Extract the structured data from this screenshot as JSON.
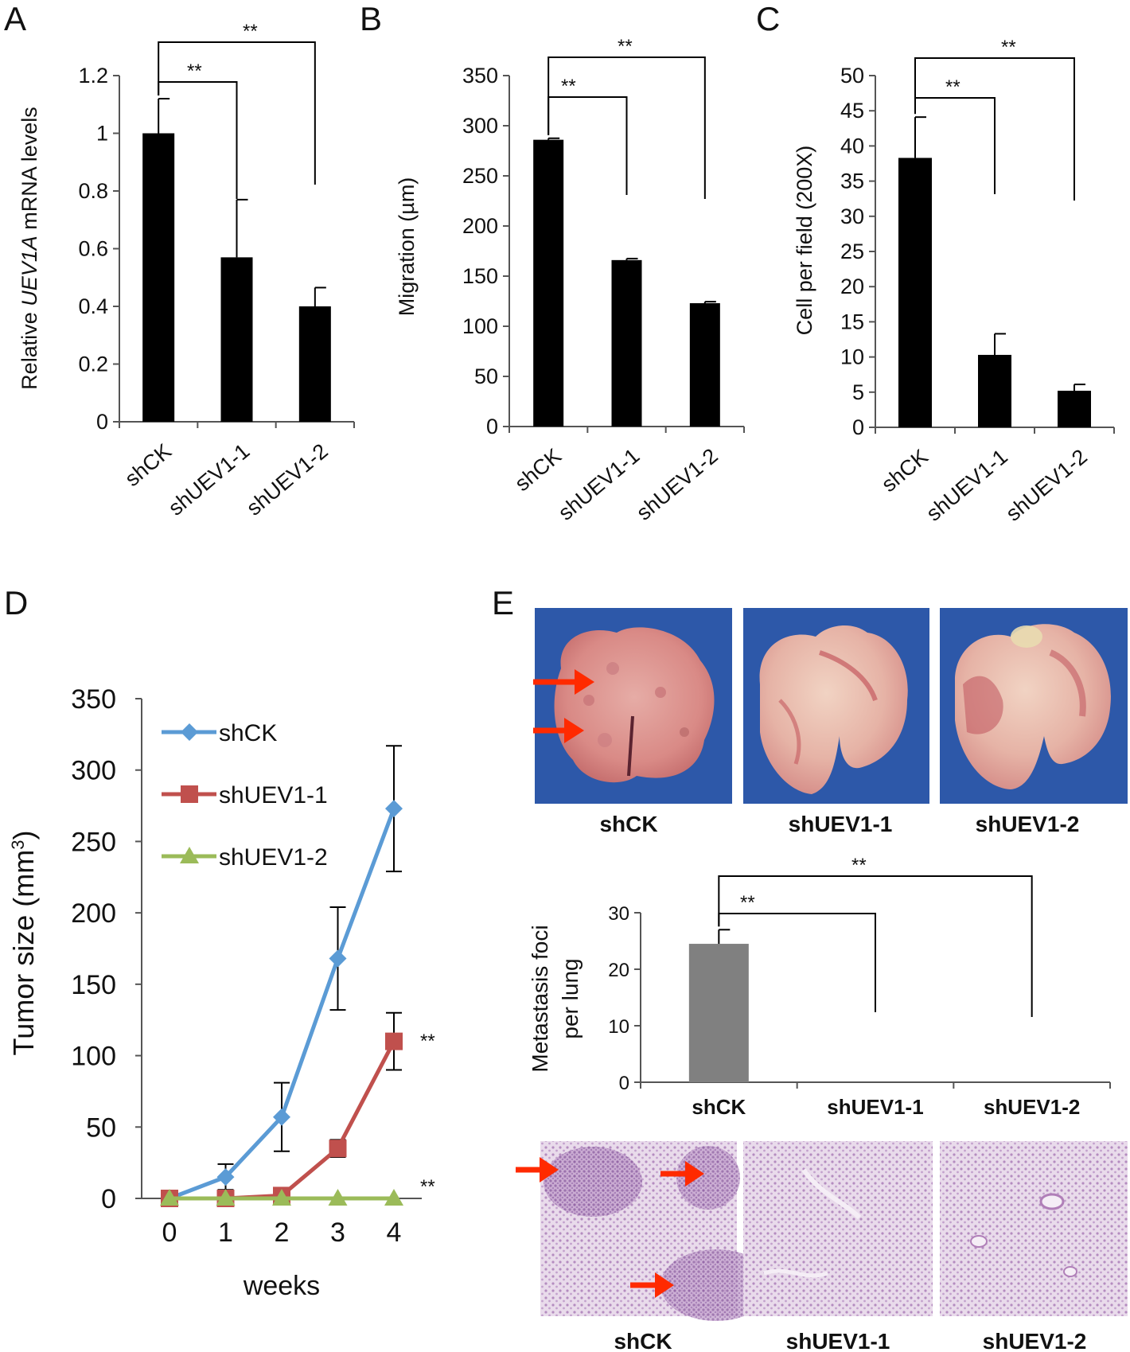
{
  "panel_letters": [
    "A",
    "B",
    "C",
    "D",
    "E"
  ],
  "chart_data": [
    {
      "panel": "A",
      "type": "bar",
      "categories": [
        "shCK",
        "shUEV1-1",
        "shUEV1-2"
      ],
      "values": [
        1.0,
        0.57,
        0.4
      ],
      "errors": [
        0.12,
        0.2,
        0.065
      ],
      "ylabel_prefix": "Relative ",
      "ylabel_italic": "UEV1A",
      "ylabel_suffix": " mRNA levels",
      "ylim": [
        0,
        1.2
      ],
      "yticks": [
        "0",
        "0.2",
        "0.4",
        "0.6",
        "0.8",
        "1",
        "1.2"
      ],
      "significance": [
        "**",
        "**"
      ]
    },
    {
      "panel": "B",
      "type": "bar",
      "categories": [
        "shCK",
        "shUEV1-1",
        "shUEV1-2"
      ],
      "values": [
        286,
        166,
        123
      ],
      "errors": [
        1.5,
        1.5,
        1.5
      ],
      "ylabel": "Migration (µm)",
      "ylim": [
        0,
        350
      ],
      "yticks": [
        "0",
        "50",
        "100",
        "150",
        "200",
        "250",
        "300",
        "350"
      ],
      "significance": [
        "**",
        "**"
      ]
    },
    {
      "panel": "C",
      "type": "bar",
      "categories": [
        "shCK",
        "shUEV1-1",
        "shUEV1-2"
      ],
      "values": [
        38.3,
        10.3,
        5.2
      ],
      "errors": [
        5.8,
        3.0,
        0.9
      ],
      "ylabel": "Cell per field (200X)",
      "ylim": [
        0,
        50
      ],
      "yticks": [
        "0",
        "5",
        "10",
        "15",
        "20",
        "25",
        "30",
        "35",
        "40",
        "45",
        "50"
      ],
      "significance": [
        "**",
        "**"
      ]
    },
    {
      "panel": "D",
      "type": "line",
      "x": [
        0,
        1,
        2,
        3,
        4
      ],
      "xticks": [
        "0",
        "1",
        "2",
        "3",
        "4"
      ],
      "xlabel": "weeks",
      "ylabel_prefix": "Tumor size (mm",
      "ylabel_sup": "3",
      "ylabel_suffix": ")",
      "ylim": [
        0,
        350
      ],
      "yticks": [
        "0",
        "50",
        "100",
        "150",
        "200",
        "250",
        "300",
        "350"
      ],
      "legend": "top-left",
      "series": [
        {
          "name": "shCK",
          "values": [
            0,
            15,
            57,
            168,
            273
          ],
          "errors": [
            0,
            9,
            24,
            36,
            44
          ],
          "color": "#5b9bd5",
          "marker": "diamond"
        },
        {
          "name": "shUEV1-1",
          "values": [
            0,
            0,
            2,
            35,
            110
          ],
          "errors": [
            0,
            0,
            0,
            6,
            20
          ],
          "color": "#c0504d",
          "marker": "square"
        },
        {
          "name": "shUEV1-2",
          "values": [
            0,
            0,
            0,
            0,
            0
          ],
          "errors": [
            0,
            0,
            0,
            0,
            0
          ],
          "color": "#9bbb59",
          "marker": "triangle"
        }
      ],
      "significance": [
        "**",
        "**"
      ]
    },
    {
      "panel": "E",
      "type": "bar",
      "categories": [
        "shCK",
        "shUEV1-1",
        "shUEV1-2"
      ],
      "values": [
        24.5,
        0,
        0
      ],
      "errors": [
        2.5,
        0,
        0
      ],
      "ylabel_line1": "Metastasis foci",
      "ylabel_line2": "per lung",
      "ylim": [
        0,
        30
      ],
      "yticks": [
        "0",
        "10",
        "20",
        "30"
      ],
      "significance": [
        "**",
        "**"
      ]
    }
  ],
  "photo_labels": [
    "shCK",
    "shUEV1-1",
    "shUEV1-2"
  ],
  "histology_labels": [
    "shCK",
    "shUEV1-1",
    "shUEV1-2"
  ],
  "colors": {
    "bar": "#000000",
    "bar_e": "#808080",
    "photo_background": "#2c57a8",
    "lung": "#d99590",
    "histology": "#ddc5e0",
    "arrow": "#ff2a00"
  }
}
